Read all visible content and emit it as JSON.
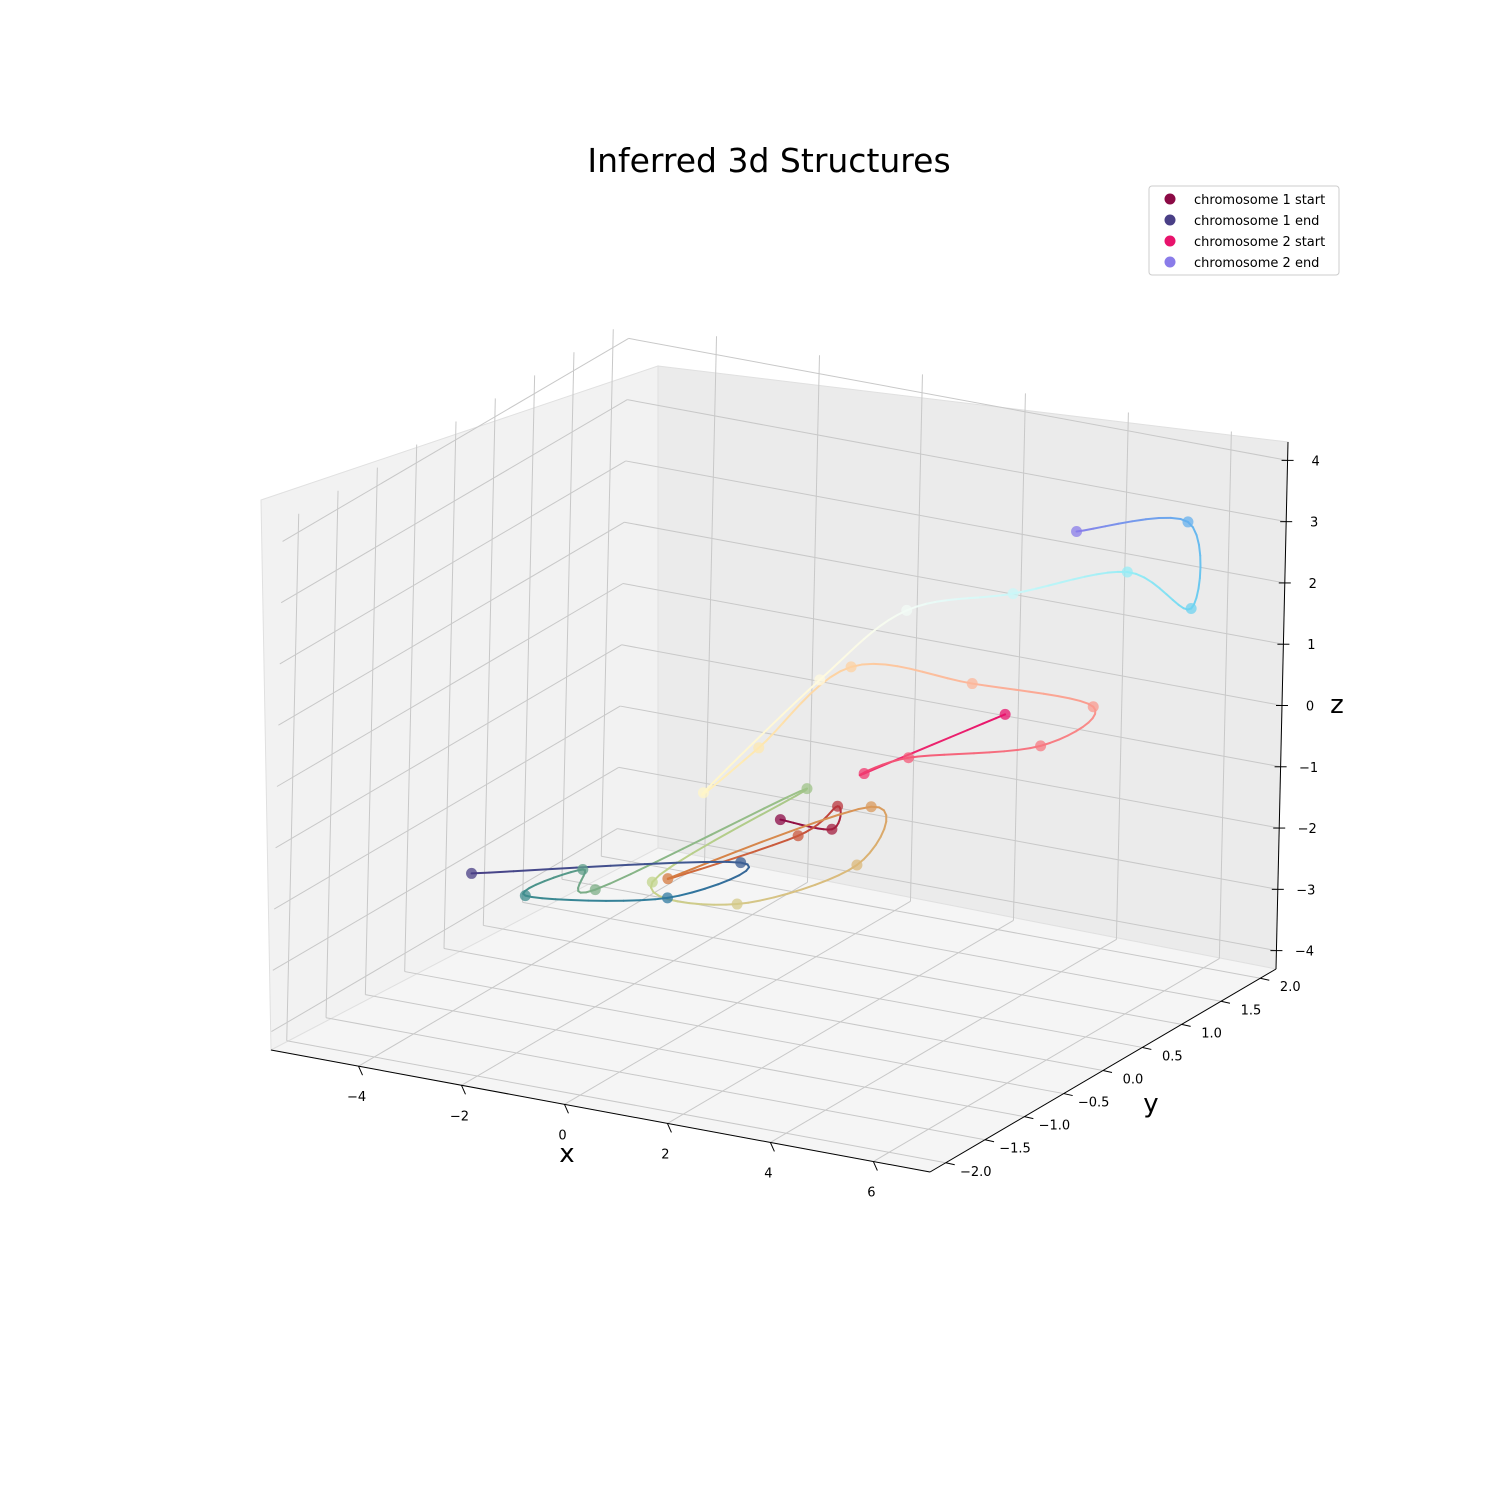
{
  "chart_data": {
    "type": "scatter",
    "title": "Inferred 3d Structures",
    "xlabel": "x",
    "ylabel": "y",
    "zlabel": "z",
    "xlim": [
      -5.7,
      7.1
    ],
    "ylim": [
      -2.2,
      2.2
    ],
    "zlim": [
      -4.3,
      4.3
    ],
    "xticks": [
      -4,
      -2,
      0,
      2,
      4,
      6
    ],
    "yticks": [
      -2.0,
      -1.5,
      -1.0,
      -0.5,
      0.0,
      0.5,
      1.0,
      1.5,
      2.0
    ],
    "zticks": [
      -4,
      -3,
      -2,
      -1,
      0,
      1,
      2,
      3,
      4
    ],
    "xtick_labels": [
      "−4",
      "−2",
      "0",
      "2",
      "4",
      "6"
    ],
    "ytick_labels": [
      "−2.0",
      "−1.5",
      "−1.0",
      "−0.5",
      "0.0",
      "0.5",
      "1.0",
      "1.5",
      "2.0"
    ],
    "ztick_labels": [
      "−4",
      "−3",
      "−2",
      "−1",
      "0",
      "1",
      "2",
      "3",
      "4"
    ],
    "grid": true,
    "legend_position": "top-right",
    "legend": [
      {
        "label": "chromosome 1 start",
        "color": "#8b0a45"
      },
      {
        "label": "chromosome 1 end",
        "color": "#4a3f86"
      },
      {
        "label": "chromosome 2 start",
        "color": "#e8136c"
      },
      {
        "label": "chromosome 2 end",
        "color": "#8a7ce9"
      }
    ],
    "series": [
      {
        "colors": [
          "#8b0a45",
          "#a31e3f",
          "#b9363e",
          "#c9573c",
          "#d4793f",
          "#d99a5c",
          "#dbb879",
          "#d4c98a",
          "#c2d48c",
          "#9fc388",
          "#7eaf87",
          "#5e9d88",
          "#3d8c8d",
          "#2f7aa0",
          "#3c5e93",
          "#4a3f86"
        ],
        "points": [
          [
            1.5,
            -0.5,
            -0.7
          ],
          [
            2.2,
            -0.3,
            -0.9
          ],
          [
            1.4,
            0.3,
            -1.1
          ],
          [
            0.8,
            0.2,
            -1.6
          ],
          [
            -0.5,
            -0.6,
            -1.9
          ],
          [
            1.3,
            0.8,
            -1.5
          ],
          [
            2.1,
            0.1,
            -1.8
          ],
          [
            0.4,
            -0.3,
            -2.4
          ],
          [
            -1.1,
            -0.4,
            -2.2
          ],
          [
            0.2,
            0.7,
            -1.3
          ],
          [
            -1.6,
            -0.8,
            -2.1
          ],
          [
            -2.9,
            -0.1,
            -2.5
          ],
          [
            -3.7,
            -0.3,
            -2.9
          ],
          [
            -2.0,
            0.4,
            -3.2
          ],
          [
            -1.2,
            0.8,
            -2.8
          ],
          [
            -4.9,
            -0.2,
            -2.8
          ]
        ]
      },
      {
        "colors": [
          "#e8136c",
          "#f0386f",
          "#f45a78",
          "#f77a82",
          "#fa9a8f",
          "#fcb79b",
          "#fdd1a2",
          "#fee8b0",
          "#fff5c8",
          "#fffadf",
          "#f2fbf6",
          "#c9f7f8",
          "#95ecf5",
          "#6fd3f0",
          "#66b0ee",
          "#8a7ce9"
        ],
        "points": [
          [
            4.3,
            0.5,
            0.7
          ],
          [
            3.1,
            -0.5,
            0.3
          ],
          [
            2.9,
            0.2,
            0.0
          ],
          [
            4.4,
            0.9,
            -0.1
          ],
          [
            4.8,
            1.3,
            0.3
          ],
          [
            3.8,
            0.4,
            1.2
          ],
          [
            2.2,
            -0.1,
            1.6
          ],
          [
            1.2,
            -0.6,
            0.5
          ],
          [
            0.6,
            -0.9,
            -0.1
          ],
          [
            1.0,
            0.3,
            0.9
          ],
          [
            1.6,
            1.0,
            1.6
          ],
          [
            2.9,
            1.5,
            1.7
          ],
          [
            4.5,
            1.9,
            2.0
          ],
          [
            5.6,
            2.0,
            1.5
          ],
          [
            5.2,
            2.2,
            2.7
          ],
          [
            4.1,
            1.5,
            2.9
          ]
        ]
      }
    ]
  }
}
